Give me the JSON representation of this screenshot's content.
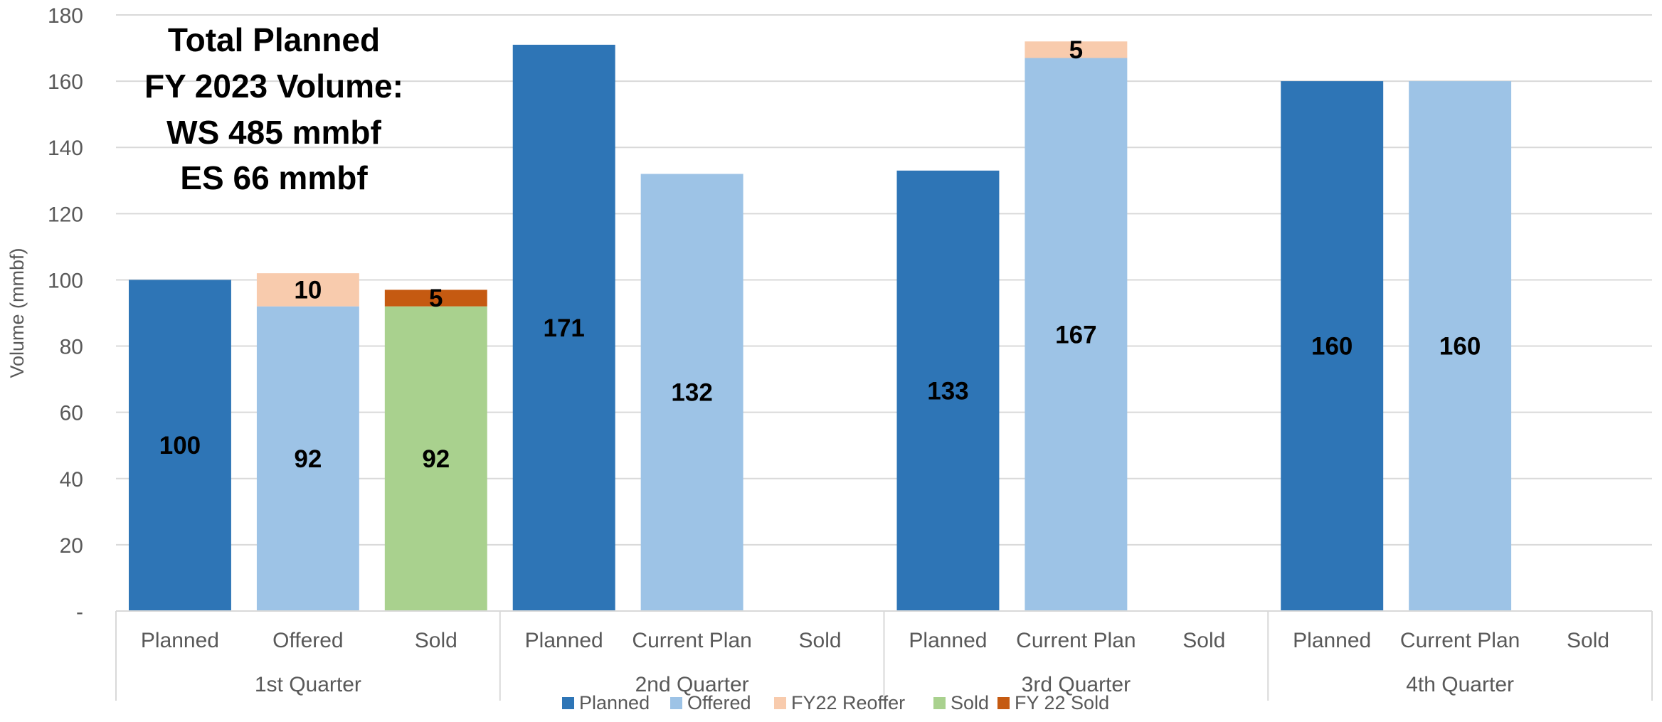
{
  "chart_data": {
    "type": "bar",
    "stacked": true,
    "ylabel": "Volume (mmbf)",
    "ylim": [
      0,
      180
    ],
    "yticks": [
      0,
      20,
      40,
      60,
      80,
      100,
      120,
      140,
      160,
      180
    ],
    "ytick_labels": [
      "-",
      "20",
      "40",
      "60",
      "80",
      "100",
      "120",
      "140",
      "160",
      "180"
    ],
    "grid": true,
    "legend_position": "bottom",
    "annotation_lines": [
      "Total Planned",
      "FY 2023 Volume:",
      "WS  485 mmbf",
      "ES    66 mmbf"
    ],
    "groups": [
      {
        "label": "1st Quarter",
        "categories": [
          "Planned",
          "Offered",
          "Sold"
        ]
      },
      {
        "label": "2nd Quarter",
        "categories": [
          "Planned",
          "Current Plan",
          "Sold"
        ]
      },
      {
        "label": "3rd Quarter",
        "categories": [
          "Planned",
          "Current Plan",
          "Sold"
        ]
      },
      {
        "label": "4th Quarter",
        "categories": [
          "Planned",
          "Current Plan",
          "Sold"
        ]
      }
    ],
    "series": [
      {
        "name": "Planned",
        "color": "#2E75B6",
        "values": [
          100,
          null,
          null,
          171,
          null,
          null,
          133,
          null,
          null,
          160,
          null,
          null
        ],
        "labels": [
          "100",
          "",
          "",
          "171",
          "",
          "",
          "133",
          "",
          "",
          "160",
          "",
          ""
        ]
      },
      {
        "name": "Offered",
        "color": "#9DC3E6",
        "values": [
          null,
          92,
          null,
          null,
          132,
          null,
          null,
          167,
          null,
          null,
          160,
          null
        ],
        "labels": [
          "",
          "92",
          "",
          "",
          "132",
          "",
          "",
          "167",
          "",
          "",
          "160",
          ""
        ]
      },
      {
        "name": "FY22 Reoffer",
        "color": "#F8CBAD",
        "values": [
          null,
          10,
          null,
          null,
          null,
          null,
          null,
          5,
          null,
          null,
          null,
          null
        ],
        "labels": [
          "",
          "10",
          "",
          "",
          "",
          "",
          "",
          "5",
          "",
          "",
          "",
          ""
        ]
      },
      {
        "name": "Sold",
        "color": "#A9D18E",
        "values": [
          null,
          null,
          92,
          null,
          null,
          null,
          null,
          null,
          null,
          null,
          null,
          null
        ],
        "labels": [
          "",
          "",
          "92",
          "",
          "",
          "",
          "",
          "",
          "",
          "",
          "",
          ""
        ]
      },
      {
        "name": "FY 22 Sold",
        "color": "#C55A11",
        "values": [
          null,
          null,
          5,
          null,
          null,
          null,
          null,
          null,
          null,
          null,
          null,
          null
        ],
        "labels": [
          "",
          "",
          "5",
          "",
          "",
          "",
          "",
          "",
          "",
          "",
          "",
          ""
        ]
      }
    ]
  }
}
